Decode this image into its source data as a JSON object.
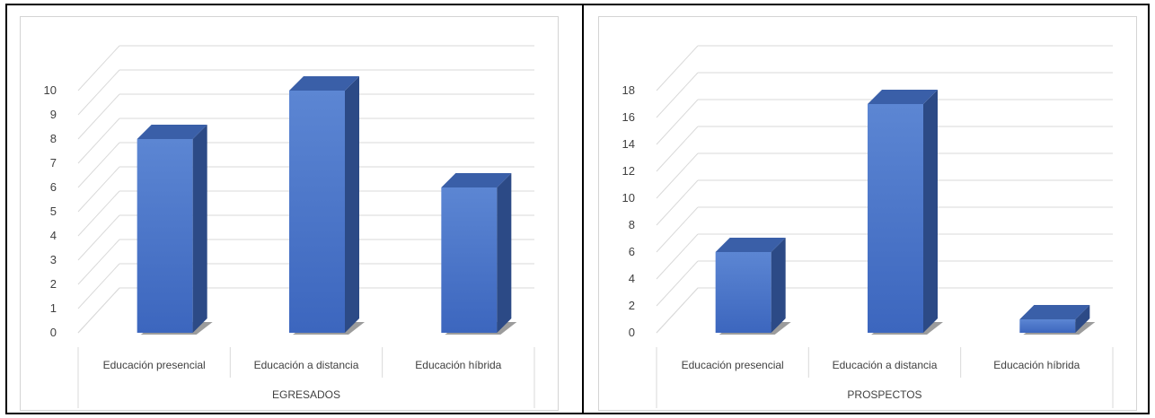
{
  "chart_data": [
    {
      "type": "bar",
      "style": "3d-column",
      "categories": [
        "Educación presencial",
        "Educación a distancia",
        "Educación híbrida"
      ],
      "group_label": "EGRESADOS",
      "values": [
        8,
        10,
        6
      ],
      "yticks": [
        0,
        1,
        2,
        3,
        4,
        5,
        6,
        7,
        8,
        9,
        10
      ],
      "ylim": [
        0,
        10
      ],
      "grid": true,
      "bar_color": "#4472C4"
    },
    {
      "type": "bar",
      "style": "3d-column",
      "categories": [
        "Educación presencial",
        "Educación a distancia",
        "Educación híbrida"
      ],
      "group_label": "PROSPECTOS",
      "values": [
        6,
        17,
        1
      ],
      "yticks": [
        0,
        2,
        4,
        6,
        8,
        10,
        12,
        14,
        16,
        18
      ],
      "ylim": [
        0,
        18
      ],
      "grid": true,
      "bar_color": "#4472C4"
    }
  ]
}
